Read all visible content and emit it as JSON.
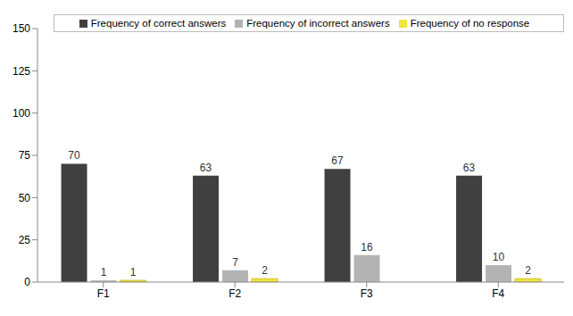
{
  "chart_data": {
    "type": "bar",
    "categories": [
      "F1",
      "F2",
      "F3",
      "F4"
    ],
    "series": [
      {
        "name": "Frequency of correct answers",
        "color": "#404040",
        "values": [
          70,
          63,
          67,
          63
        ]
      },
      {
        "name": "Frequency of incorrect answers",
        "color": "#b3b3b3",
        "values": [
          1,
          7,
          16,
          10
        ]
      },
      {
        "name": "Frequency of no response",
        "color": "#f0e63c",
        "values": [
          1,
          2,
          null,
          2
        ]
      }
    ],
    "ylim": [
      0,
      150
    ],
    "yticks": [
      0,
      25,
      50,
      75,
      100,
      125,
      150
    ],
    "grid": false,
    "legend": "top",
    "data_labels": true
  }
}
